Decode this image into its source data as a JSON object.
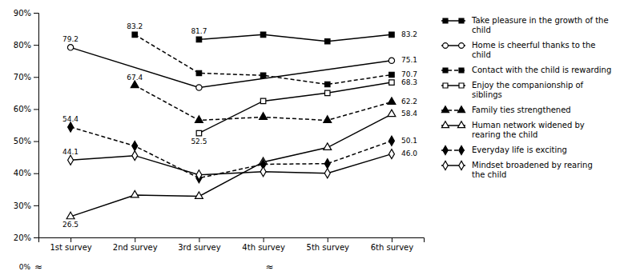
{
  "chart_data": {
    "type": "line",
    "categories": [
      "1st survey",
      "2nd survey",
      "3rd survey",
      "4th survey",
      "5th survey",
      "6th survey"
    ],
    "series": [
      {
        "name": "Take pleasure in the growth of the\nchild",
        "color": "#000000",
        "marker": "square",
        "line_style": "solid",
        "values": [
          null,
          null,
          81.7,
          83.2,
          81.1,
          83.2
        ]
      },
      {
        "name": "Home is cheerful thanks to the\nchild",
        "color": "#000000",
        "marker": "circle-open",
        "line_style": "solid",
        "values": [
          79.2,
          null,
          66.7,
          null,
          null,
          75.1
        ]
      },
      {
        "name": "Contact with the child is rewarding",
        "color": "#000000",
        "marker": "square",
        "line_style": "dashed",
        "values": [
          null,
          83.2,
          71.2,
          70.5,
          67.7,
          70.7
        ]
      },
      {
        "name": "Enjoy the companionship of\nsiblings",
        "color": "#000000",
        "marker": "square-open",
        "line_style": "solid",
        "values": [
          null,
          null,
          52.5,
          62.5,
          65.0,
          68.3
        ]
      },
      {
        "name": "Family ties strengthened",
        "color": "#000000",
        "marker": "triangle",
        "line_style": "dashed",
        "values": [
          null,
          67.4,
          56.5,
          57.5,
          56.5,
          62.2
        ]
      },
      {
        "name": "Human network widened by\nrearing the child",
        "color": "#000000",
        "marker": "triangle-open",
        "line_style": "solid",
        "values": [
          26.5,
          33.2,
          32.8,
          43.5,
          48.0,
          58.4
        ]
      },
      {
        "name": "Everyday life is exciting",
        "color": "#000000",
        "marker": "diamond",
        "line_style": "dashed",
        "values": [
          54.4,
          48.5,
          38.5,
          42.8,
          43.0,
          50.1
        ]
      },
      {
        "name": "Mindset broadened by rearing\nthe child",
        "color": "#000000",
        "marker": "diamond-open",
        "line_style": "solid",
        "values": [
          44.1,
          45.5,
          39.5,
          40.5,
          40.0,
          46.0
        ]
      }
    ],
    "annotations": [
      {
        "text": "81.7",
        "series": 0,
        "index": 2,
        "position": "above"
      },
      {
        "text": "83.2",
        "series": 0,
        "index": 5,
        "position": "right"
      },
      {
        "text": "79.2",
        "series": 1,
        "index": 0,
        "position": "above"
      },
      {
        "text": "75.1",
        "series": 1,
        "index": 5,
        "position": "right"
      },
      {
        "text": "83.2",
        "series": 2,
        "index": 1,
        "position": "above"
      },
      {
        "text": "70.7",
        "series": 2,
        "index": 5,
        "position": "right"
      },
      {
        "text": "52.5",
        "series": 3,
        "index": 2,
        "position": "below"
      },
      {
        "text": "68.3",
        "series": 3,
        "index": 5,
        "position": "right"
      },
      {
        "text": "67.4",
        "series": 4,
        "index": 1,
        "position": "above"
      },
      {
        "text": "62.2",
        "series": 4,
        "index": 5,
        "position": "right"
      },
      {
        "text": "26.5",
        "series": 5,
        "index": 0,
        "position": "below"
      },
      {
        "text": "58.4",
        "series": 5,
        "index": 5,
        "position": "right"
      },
      {
        "text": "54.4",
        "series": 6,
        "index": 0,
        "position": "above"
      },
      {
        "text": "50.1",
        "series": 6,
        "index": 5,
        "position": "right"
      },
      {
        "text": "44.1",
        "series": 7,
        "index": 0,
        "position": "above"
      },
      {
        "text": "46.0",
        "series": 7,
        "index": 5,
        "position": "right"
      },
      {
        "text": "≈",
        "position": "axis-break"
      },
      {
        "text": "≈",
        "position": "axis-break"
      },
      {
        "text": "0%",
        "position": "axis-origin"
      }
    ],
    "ylim": [
      20,
      90
    ],
    "yticks": [
      {
        "value": 20,
        "label": "20%"
      },
      {
        "value": 30,
        "label": "30%"
      },
      {
        "value": 40,
        "label": "40%"
      },
      {
        "value": 50,
        "label": "50%"
      },
      {
        "value": 60,
        "label": "60%"
      },
      {
        "value": 70,
        "label": "70%"
      },
      {
        "value": 80,
        "label": "80%"
      },
      {
        "value": 90,
        "label": "90%"
      }
    ],
    "grid": false,
    "legend": "right"
  }
}
